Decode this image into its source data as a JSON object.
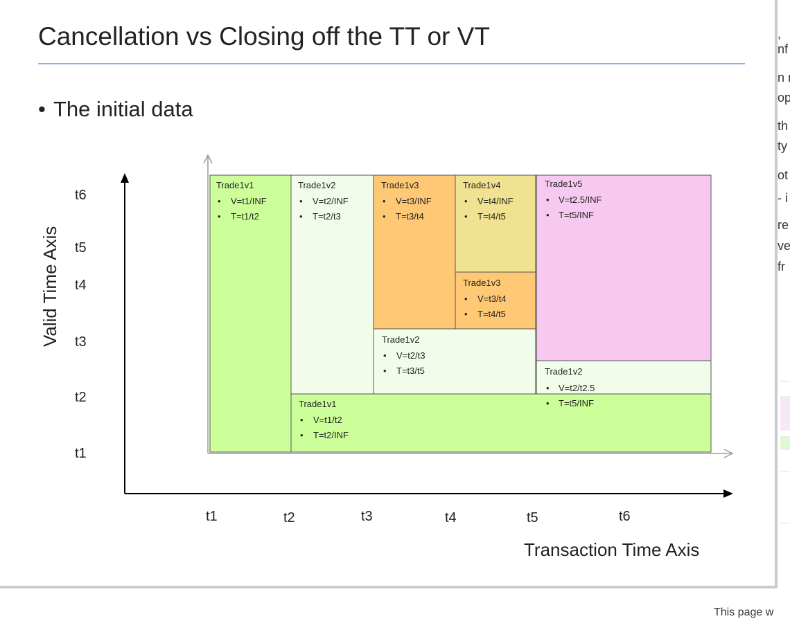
{
  "slide": {
    "title": "Cancellation vs Closing off the TT or VT",
    "bullet": "The initial data"
  },
  "axes": {
    "y_title": "Valid Time Axis",
    "x_title": "Transaction Time Axis",
    "y_ticks": [
      "t6",
      "t5",
      "t4",
      "t3",
      "t2",
      "t1"
    ],
    "x_ticks": [
      "t1",
      "t2",
      "t3",
      "t4",
      "t5",
      "t6"
    ]
  },
  "boxes": [
    {
      "name": "trade1v1-top",
      "color": "#ccff99",
      "title": "Trade1v1",
      "lines": [
        "V=t1/INF",
        "T=t1/t2"
      ]
    },
    {
      "name": "trade1v2-top",
      "color": "#f1fdea",
      "title": "Trade1v2",
      "lines": [
        "V=t2/INF",
        "T=t2/t3"
      ]
    },
    {
      "name": "trade1v3-top",
      "color": "#ffc875",
      "title": "Trade1v3",
      "lines": [
        "V=t3/INF",
        "T=t3/t4"
      ]
    },
    {
      "name": "trade1v4",
      "color": "#f0e290",
      "title": "Trade1v4",
      "lines": [
        "V=t4/INF",
        "T=t4/t5"
      ]
    },
    {
      "name": "trade1v5",
      "color": "#f7c9f0",
      "title": "Trade1v5",
      "lines": [
        "V=t2.5/INF",
        "T=t5/INF"
      ]
    },
    {
      "name": "trade1v3-closed",
      "color": "#ffc875",
      "title": "Trade1v3",
      "lines": [
        "V=t3/t4",
        "T=t4/t5"
      ]
    },
    {
      "name": "trade1v2-mid",
      "color": "#f1fdea",
      "title": "Trade1v2",
      "lines": [
        "V=t2/t3",
        "T=t3/t5"
      ]
    },
    {
      "name": "trade1v2-right",
      "color": "#f1fdea",
      "title": "Trade1v2",
      "lines": [
        "V=t2/t2.5",
        "T=t5/INF"
      ]
    },
    {
      "name": "trade1v1-bottom",
      "color": "#ccff99",
      "title": "Trade1v1",
      "lines": [
        "V=t1/t2",
        "T=t2/INF"
      ]
    }
  ],
  "side_column": {
    "lines": [
      ", ",
      "nf",
      "n r",
      "op",
      "th",
      "ty",
      "ot",
      "- i",
      "re",
      "ve",
      "fr"
    ]
  },
  "footer": "This page w"
}
